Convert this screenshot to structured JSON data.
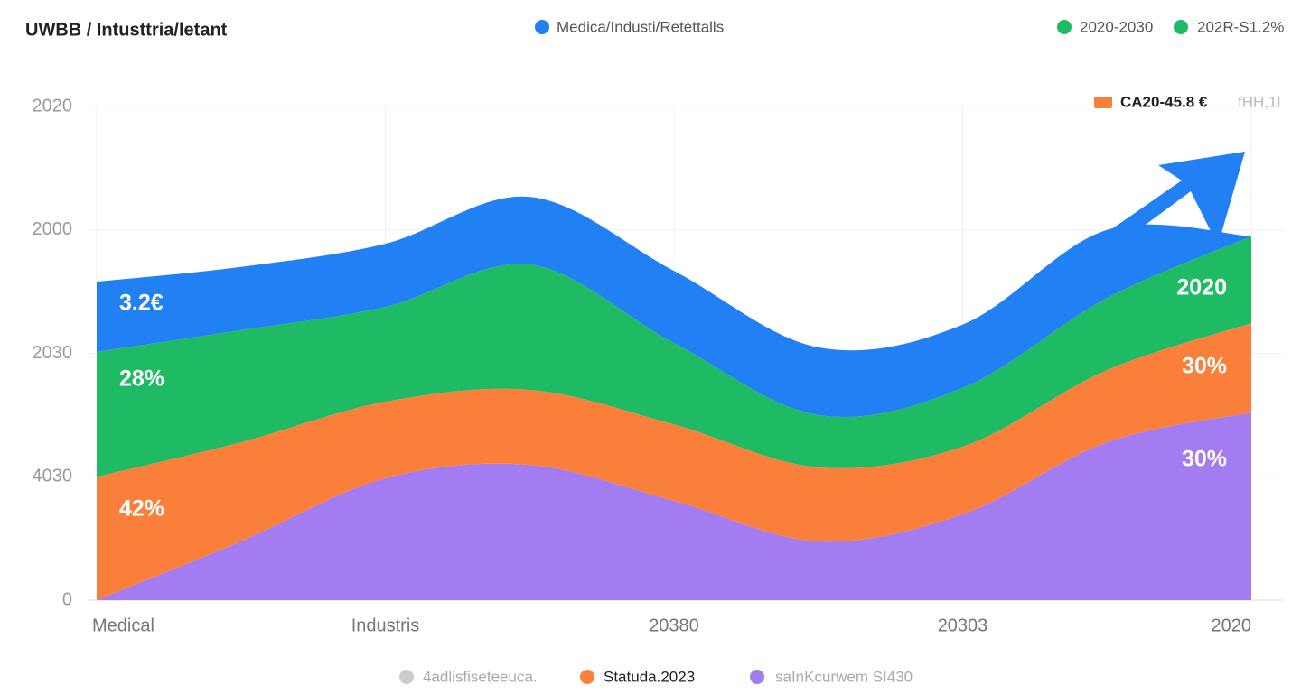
{
  "chart_data": {
    "type": "stacked-area",
    "title": "UWBB / Intusttria/letant",
    "x": [
      0,
      12.5,
      25,
      37.5,
      50,
      62.5,
      75,
      87.5,
      100
    ],
    "xlim": [
      0,
      100
    ],
    "xticks": [
      {
        "value": 0,
        "label": "Medical"
      },
      {
        "value": 25,
        "label": "Industris"
      },
      {
        "value": 50,
        "label": "20380"
      },
      {
        "value": 75,
        "label": "20303"
      },
      {
        "value": 100,
        "label": "2020"
      }
    ],
    "ylim": [
      0,
      100
    ],
    "yticks": [
      0,
      {
        "value": 25,
        "label": "4030"
      },
      {
        "value": 50,
        "label": "2030"
      },
      {
        "value": 75,
        "label": "2000"
      },
      {
        "value": 100,
        "label": "2020"
      }
    ],
    "grid": true,
    "series": [
      {
        "name": "saInKcurwem SI430",
        "color": "#a27cf0",
        "values": [
          0,
          11.9,
          24.7,
          27.4,
          20.1,
          11.9,
          17.4,
          32,
          38
        ]
      },
      {
        "name": "Statuda.2023",
        "color": "#fa7f3a",
        "values": [
          25,
          20.1,
          15.5,
          15.2,
          15.5,
          15,
          13.7,
          14.6,
          18.1
        ]
      },
      {
        "name": "2020-2030",
        "color": "#1fbb64",
        "values": [
          25.3,
          22.7,
          19.2,
          25.4,
          16.5,
          10.6,
          11.9,
          14.6,
          17.6
        ]
      },
      {
        "name": "Medica/Industi/Retettalls",
        "color": "#2180f3",
        "values": [
          14.2,
          12.8,
          12.8,
          13.7,
          14.6,
          13.7,
          12.8,
          13.8,
          0
        ]
      }
    ],
    "legend_extra": [
      {
        "text": "202R-S1.2%",
        "color": "#1fbb64"
      },
      {
        "text": "CA20-45.8 €",
        "color": "#fa7f3a"
      },
      {
        "text": "fHH,1l",
        "color": "#bbbbbb"
      },
      {
        "text": "4adlisfiseteeuca.",
        "color": "#cccccc"
      }
    ],
    "annotations": [
      "3.2€",
      "28%",
      "42%",
      "2020",
      "30%",
      "30%"
    ]
  }
}
